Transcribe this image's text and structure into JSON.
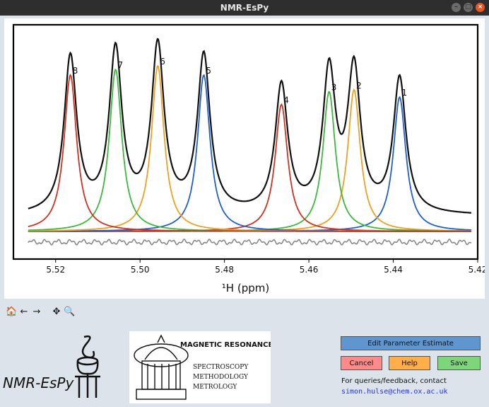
{
  "window": {
    "title": "NMR-EsPy"
  },
  "toolbar": {
    "icons": [
      "home-icon",
      "back-arrow-icon",
      "forward-arrow-icon",
      "pan-icon",
      "zoom-icon"
    ],
    "glyphs": [
      "🏠",
      "←",
      "→",
      "✥",
      "🔍"
    ]
  },
  "logos": {
    "nmrespy_text": "NMR-EsPy",
    "mr_title": "MAGNETIC RESONANCE",
    "mr_lines": [
      "SPECTROSCOPY",
      "METHODOLOGY",
      "METROLOGY"
    ]
  },
  "buttons": {
    "edit": "Edit Parameter Estimate",
    "cancel": "Cancel",
    "help": "Help",
    "save": "Save"
  },
  "contact": {
    "text": "For queries/feedback, contact",
    "email": "simon.hulse@chem.ox.ac.uk"
  },
  "chart_data": {
    "type": "line",
    "xlabel": "¹H (ppm)",
    "xlim": [
      5.53,
      5.42
    ],
    "xticks": [
      "5.52",
      "5.50",
      "5.48",
      "5.46",
      "5.44",
      "5.42"
    ],
    "xtick_values": [
      5.52,
      5.5,
      5.48,
      5.46,
      5.44,
      5.42
    ],
    "grid": false,
    "peaks": [
      {
        "label": "1",
        "ppm": 5.4385,
        "height": 0.73,
        "color": "#1f5fd0"
      },
      {
        "label": "2",
        "ppm": 5.4493,
        "height": 0.77,
        "color": "#f0a020"
      },
      {
        "label": "3",
        "ppm": 5.4552,
        "height": 0.76,
        "color": "#3cb83c"
      },
      {
        "label": "4",
        "ppm": 5.4665,
        "height": 0.69,
        "color": "#d43020"
      },
      {
        "label": "5",
        "ppm": 5.4849,
        "height": 0.85,
        "color": "#1f5fd0"
      },
      {
        "label": "6",
        "ppm": 5.4958,
        "height": 0.9,
        "color": "#f0a020"
      },
      {
        "label": "7",
        "ppm": 5.5058,
        "height": 0.88,
        "color": "#3cb83c"
      },
      {
        "label": "8",
        "ppm": 5.5165,
        "height": 0.85,
        "color": "#d43020"
      }
    ],
    "linewidth_ppm": 0.0018,
    "total_color": "#111111",
    "residual_color": "#888888"
  }
}
